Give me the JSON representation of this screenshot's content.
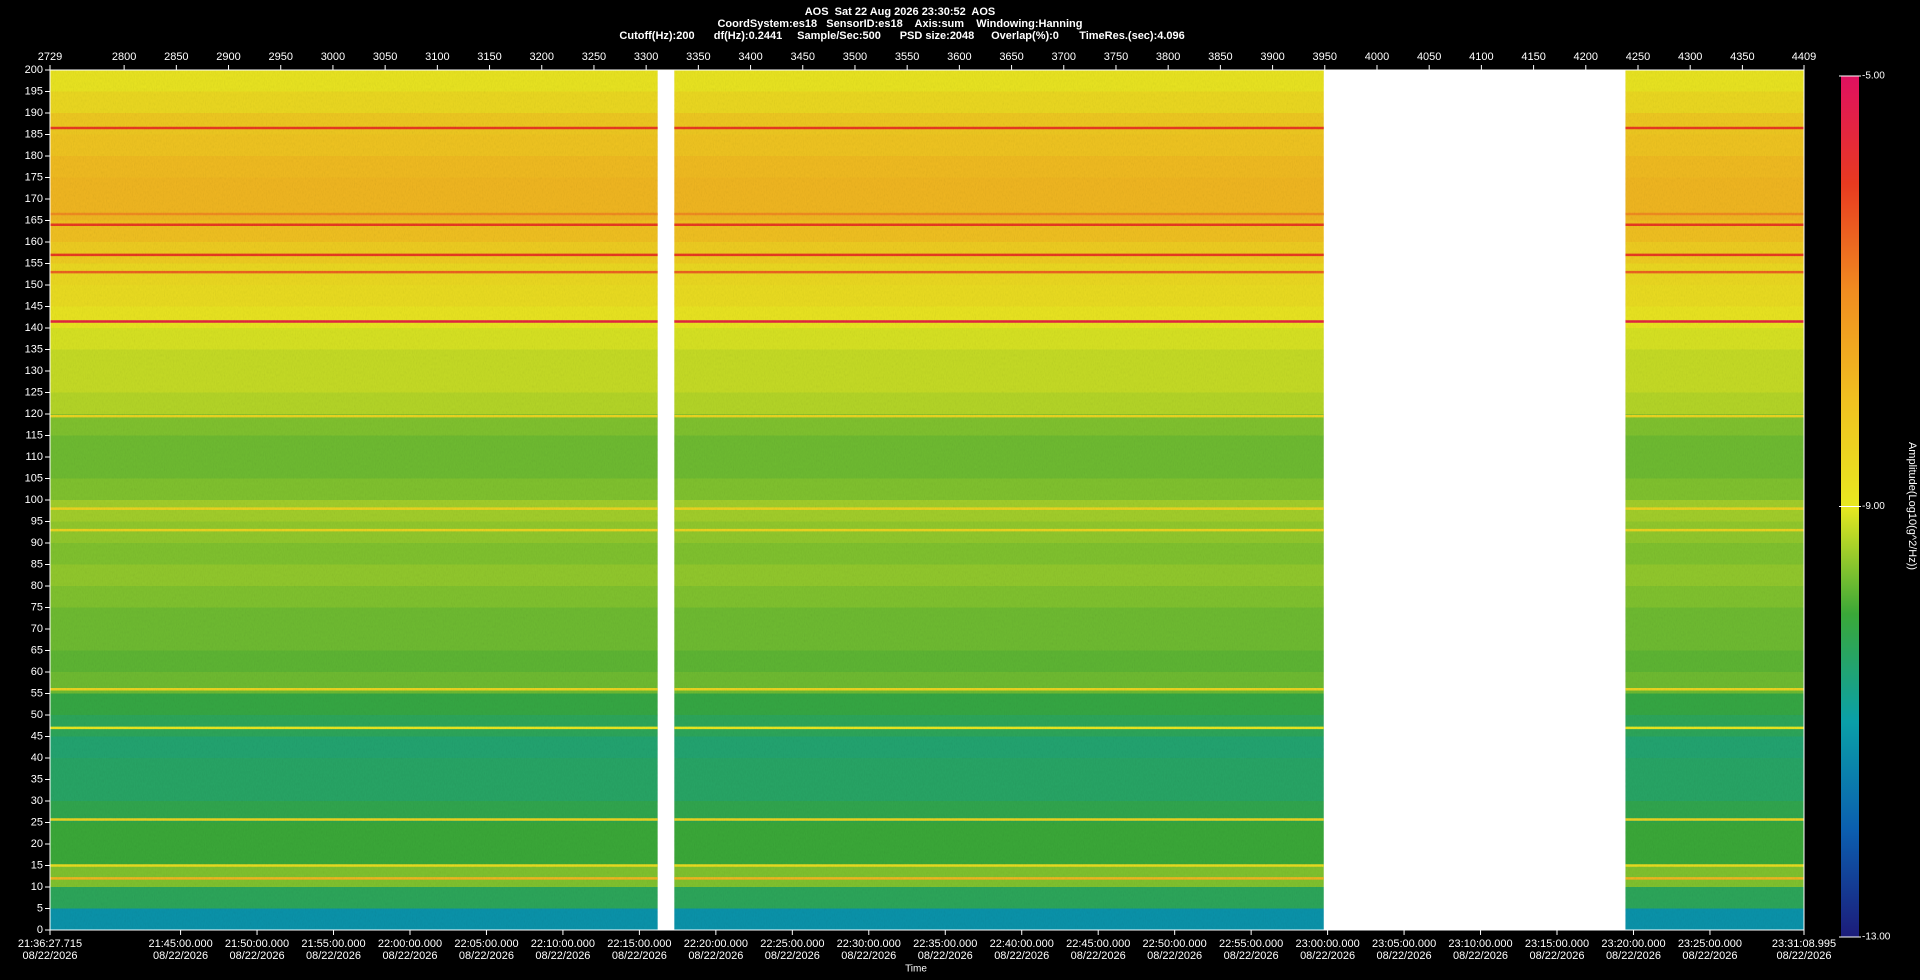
{
  "chart_data": {
    "type": "spectrogram",
    "header": {
      "title": "AOS  Sat 22 Aug 2026 23:30:52  AOS",
      "subtitle": "CoordSystem:es18   SensorID:es18    Axis:sum    Windowing:Hanning",
      "parameters": [
        "Cutoff(Hz):200",
        "df(Hz):0.2441",
        "Sample/Sec:500",
        "PSD size:2048",
        "Overlap(%):0",
        "TimeRes.(sec):4.096"
      ]
    },
    "xlabel": "Time",
    "colorbar_label": "Amplitude(Log10(g^2/Hz))",
    "xlim": [
      2729,
      4409
    ],
    "xticks": [
      2729,
      2800,
      2850,
      2900,
      2950,
      3000,
      3050,
      3100,
      3150,
      3200,
      3250,
      3300,
      3350,
      3400,
      3450,
      3500,
      3550,
      3600,
      3650,
      3700,
      3750,
      3800,
      3850,
      3900,
      3950,
      4000,
      4050,
      4100,
      4150,
      4200,
      4250,
      4300,
      4350,
      4409
    ],
    "x2lim": [
      77787.715,
      84668.995
    ],
    "x2ticks": [
      {
        "value": 77787.715,
        "label": "21:36:27.715\n08/22/2026"
      },
      {
        "value": 78300,
        "label": "21:45:00.000\n08/22/2026"
      },
      {
        "value": 78600,
        "label": "21:50:00.000\n08/22/2026"
      },
      {
        "value": 78900,
        "label": "21:55:00.000\n08/22/2026"
      },
      {
        "value": 79200,
        "label": "22:00:00.000\n08/22/2026"
      },
      {
        "value": 79500,
        "label": "22:05:00.000\n08/22/2026"
      },
      {
        "value": 79800,
        "label": "22:10:00.000\n08/22/2026"
      },
      {
        "value": 80100,
        "label": "22:15:00.000\n08/22/2026"
      },
      {
        "value": 80400,
        "label": "22:20:00.000\n08/22/2026"
      },
      {
        "value": 80700,
        "label": "22:25:00.000\n08/22/2026"
      },
      {
        "value": 81000,
        "label": "22:30:00.000\n08/22/2026"
      },
      {
        "value": 81300,
        "label": "22:35:00.000\n08/22/2026"
      },
      {
        "value": 81600,
        "label": "22:40:00.000\n08/22/2026"
      },
      {
        "value": 81900,
        "label": "22:45:00.000\n08/22/2026"
      },
      {
        "value": 82200,
        "label": "22:50:00.000\n08/22/2026"
      },
      {
        "value": 82500,
        "label": "22:55:00.000\n08/22/2026"
      },
      {
        "value": 82800,
        "label": "23:00:00.000\n08/22/2026"
      },
      {
        "value": 83100,
        "label": "23:05:00.000\n08/22/2026"
      },
      {
        "value": 83400,
        "label": "23:10:00.000\n08/22/2026"
      },
      {
        "value": 83700,
        "label": "23:15:00.000\n08/22/2026"
      },
      {
        "value": 84000,
        "label": "23:20:00.000\n08/22/2026"
      },
      {
        "value": 84300,
        "label": "23:25:00.000\n08/22/2026"
      },
      {
        "value": 84668.995,
        "label": "23:31:08.995\n08/22/2026"
      }
    ],
    "ylim": [
      0,
      200
    ],
    "yticks": [
      0,
      5,
      10,
      15,
      20,
      25,
      30,
      35,
      40,
      45,
      50,
      55,
      60,
      65,
      70,
      75,
      80,
      85,
      90,
      95,
      100,
      105,
      110,
      115,
      120,
      125,
      130,
      135,
      140,
      145,
      150,
      155,
      160,
      165,
      170,
      175,
      180,
      185,
      190,
      195,
      200
    ],
    "segments": [
      [
        2729,
        3311
      ],
      [
        3327,
        3949
      ],
      [
        4238,
        4409
      ]
    ],
    "frequency_bins": [
      0,
      5,
      10,
      15,
      20,
      25,
      30,
      35,
      40,
      45,
      50,
      55,
      60,
      65,
      70,
      75,
      80,
      85,
      90,
      95,
      100,
      105,
      110,
      115,
      120,
      125,
      130,
      135,
      140,
      145,
      150,
      155,
      160,
      165,
      170,
      175,
      180,
      185,
      190,
      195,
      200
    ],
    "amplitude": [
      -11.2,
      -10.3,
      -9.6,
      -10,
      -10,
      -10.2,
      -10.4,
      -10.4,
      -10.5,
      -10.3,
      -10.1,
      -9.7,
      -9.8,
      -9.7,
      -9.7,
      -9.6,
      -9.5,
      -9.6,
      -9.5,
      -9.4,
      -9.6,
      -9.7,
      -9.7,
      -9.6,
      -9.3,
      -9.2,
      -9.2,
      -9.1,
      -8.9,
      -8.7,
      -8.6,
      -8.3,
      -8.0,
      -7.8,
      -7.8,
      -7.9,
      -8.1,
      -8.2,
      -8.6,
      -8.9
    ],
    "tones": {
      "frequencies": [
        186.5,
        166.5,
        164,
        157,
        153,
        141.5,
        119.5,
        98,
        93,
        56,
        47,
        25.7,
        15,
        12
      ],
      "values": [
        -6,
        -7,
        -6,
        -6,
        -6.5,
        -5.5,
        -8.5,
        -8.5,
        -8.5,
        -8.5,
        -9,
        -8.5,
        -8.7,
        -7.8
      ]
    },
    "clim": [
      -13,
      -5
    ],
    "cticks": [
      {
        "value": -13,
        "label": "-13.00"
      },
      {
        "value": -9,
        "label": "-9.00"
      },
      {
        "value": -5,
        "label": "-5.00"
      }
    ],
    "colormap": [
      "#1c1c7a",
      "#0b5fb0",
      "#0aa0a8",
      "#3aa838",
      "#e8e820",
      "#f0c020",
      "#f08c20",
      "#e83a20",
      "#e01060"
    ],
    "background": "#000000",
    "empty_color": "#ffffff"
  }
}
